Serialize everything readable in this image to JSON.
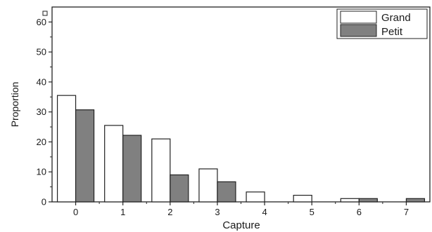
{
  "chart_data": {
    "type": "bar",
    "title": "",
    "xlabel": "Capture",
    "ylabel": "Proportion",
    "categories": [
      "0",
      "1",
      "2",
      "3",
      "4",
      "5",
      "6",
      "7"
    ],
    "series": [
      {
        "name": "Grand",
        "values": [
          35.5,
          25.5,
          21,
          11,
          3.3,
          2.2,
          1.1,
          0
        ],
        "color": "#ffffff"
      },
      {
        "name": "Petit",
        "values": [
          30.7,
          22.2,
          9,
          6.7,
          0,
          0,
          1.1,
          1.1
        ],
        "color": "#808080"
      }
    ],
    "ylim": [
      0,
      65
    ],
    "yticks": [
      0,
      10,
      20,
      30,
      40,
      50,
      60
    ],
    "grid": false,
    "legend": "top-right"
  }
}
